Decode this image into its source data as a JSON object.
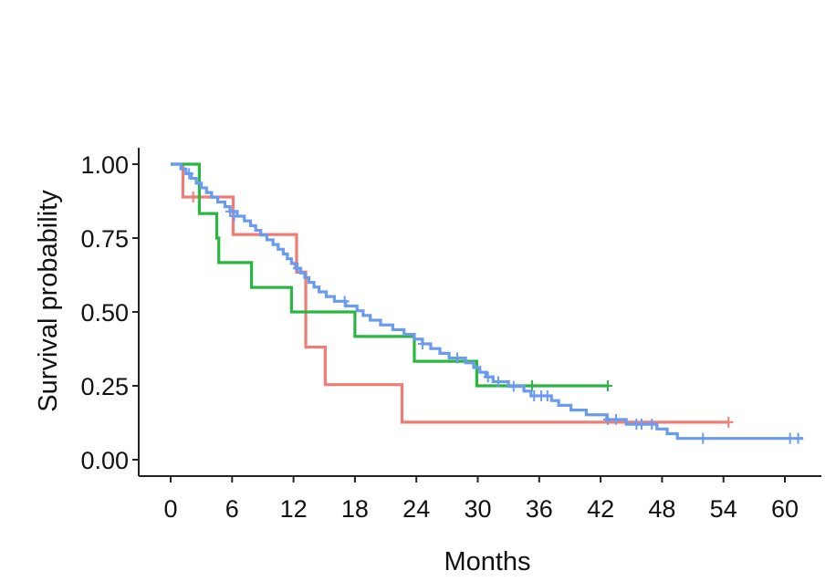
{
  "chart_data": {
    "type": "line",
    "subtype": "kaplan-meier-step",
    "title": "",
    "xlabel": "Months",
    "ylabel": "Survival probability",
    "xlim": [
      0,
      62
    ],
    "ylim": [
      0,
      1
    ],
    "x_ticks": [
      0,
      6,
      12,
      18,
      24,
      30,
      36,
      42,
      48,
      54,
      60
    ],
    "x_tick_labels": [
      "0",
      "6",
      "12",
      "18",
      "24",
      "30",
      "36",
      "42",
      "48",
      "54",
      "60"
    ],
    "y_ticks": [
      0,
      0.25,
      0.5,
      0.75,
      1
    ],
    "y_tick_labels": [
      "0.00",
      "0.25",
      "0.50",
      "0.75",
      "1.00"
    ],
    "grid": false,
    "legend": "none",
    "series": [
      {
        "name": "red",
        "color": "#f07c74",
        "steps": [
          [
            0,
            1.0
          ],
          [
            1.2,
            0.889
          ],
          [
            6.1,
            0.762
          ],
          [
            12.3,
            0.635
          ],
          [
            13.2,
            0.381
          ],
          [
            15.1,
            0.254
          ],
          [
            22.6,
            0.127
          ],
          [
            54.5,
            0.127
          ]
        ],
        "censored": [
          [
            2.2,
            0.889
          ],
          [
            54.5,
            0.127
          ]
        ]
      },
      {
        "name": "green",
        "color": "#2ab640",
        "steps": [
          [
            0,
            1.0
          ],
          [
            2.8,
            0.833
          ],
          [
            4.5,
            0.75
          ],
          [
            4.7,
            0.667
          ],
          [
            7.9,
            0.583
          ],
          [
            11.8,
            0.5
          ],
          [
            18.0,
            0.417
          ],
          [
            23.8,
            0.333
          ],
          [
            29.9,
            0.25
          ],
          [
            42.7,
            0.25
          ]
        ],
        "censored": [
          [
            35.3,
            0.25
          ],
          [
            42.7,
            0.25
          ]
        ]
      },
      {
        "name": "blue",
        "color": "#6b9bee",
        "steps": [
          [
            0,
            1.0
          ],
          [
            1.0,
            0.984
          ],
          [
            1.5,
            0.968
          ],
          [
            2.0,
            0.952
          ],
          [
            2.5,
            0.936
          ],
          [
            3.0,
            0.92
          ],
          [
            3.5,
            0.904
          ],
          [
            4.0,
            0.888
          ],
          [
            4.6,
            0.872
          ],
          [
            5.3,
            0.856
          ],
          [
            5.8,
            0.84
          ],
          [
            6.5,
            0.824
          ],
          [
            7.2,
            0.808
          ],
          [
            7.8,
            0.792
          ],
          [
            8.3,
            0.776
          ],
          [
            8.8,
            0.76
          ],
          [
            9.4,
            0.744
          ],
          [
            10.0,
            0.728
          ],
          [
            10.5,
            0.712
          ],
          [
            11.0,
            0.696
          ],
          [
            11.4,
            0.68
          ],
          [
            11.8,
            0.664
          ],
          [
            12.2,
            0.648
          ],
          [
            12.7,
            0.632
          ],
          [
            13.1,
            0.616
          ],
          [
            13.5,
            0.6
          ],
          [
            14.0,
            0.584
          ],
          [
            14.5,
            0.568
          ],
          [
            15.2,
            0.552
          ],
          [
            16.0,
            0.536
          ],
          [
            17.1,
            0.52
          ],
          [
            18.2,
            0.504
          ],
          [
            18.8,
            0.488
          ],
          [
            19.5,
            0.472
          ],
          [
            20.5,
            0.456
          ],
          [
            21.7,
            0.44
          ],
          [
            22.8,
            0.424
          ],
          [
            23.8,
            0.408
          ],
          [
            24.6,
            0.392
          ],
          [
            25.4,
            0.376
          ],
          [
            26.3,
            0.36
          ],
          [
            27.2,
            0.344
          ],
          [
            28.8,
            0.328
          ],
          [
            29.6,
            0.312
          ],
          [
            30.2,
            0.296
          ],
          [
            30.8,
            0.28
          ],
          [
            31.5,
            0.264
          ],
          [
            33.0,
            0.248
          ],
          [
            34.5,
            0.232
          ],
          [
            35.2,
            0.216
          ],
          [
            37.2,
            0.2
          ],
          [
            37.9,
            0.184
          ],
          [
            39.1,
            0.168
          ],
          [
            40.6,
            0.152
          ],
          [
            42.6,
            0.136
          ],
          [
            44.5,
            0.12
          ],
          [
            47.5,
            0.104
          ],
          [
            48.5,
            0.088
          ],
          [
            49.5,
            0.072
          ],
          [
            61.8,
            0.072
          ]
        ],
        "censored": [
          [
            1.8,
            0.968
          ],
          [
            5.8,
            0.84
          ],
          [
            6.2,
            0.824
          ],
          [
            12.4,
            0.648
          ],
          [
            17.0,
            0.536
          ],
          [
            24.6,
            0.392
          ],
          [
            28.0,
            0.344
          ],
          [
            31.0,
            0.28
          ],
          [
            32.0,
            0.264
          ],
          [
            33.5,
            0.248
          ],
          [
            35.5,
            0.216
          ],
          [
            36.2,
            0.216
          ],
          [
            36.8,
            0.216
          ],
          [
            42.7,
            0.136
          ],
          [
            43.5,
            0.136
          ],
          [
            45.5,
            0.12
          ],
          [
            46.0,
            0.12
          ],
          [
            47.0,
            0.12
          ],
          [
            52.0,
            0.072
          ],
          [
            60.5,
            0.072
          ],
          [
            61.3,
            0.072
          ]
        ]
      }
    ]
  }
}
